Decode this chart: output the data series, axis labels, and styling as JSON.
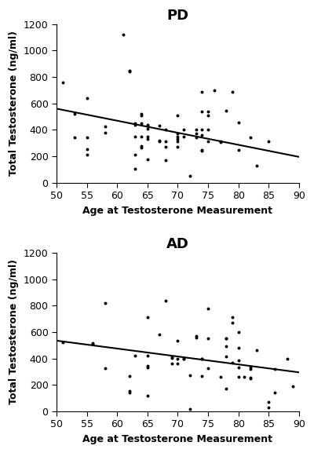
{
  "pd_title": "PD",
  "ad_title": "AD",
  "xlabel": "Age at Testosterone Measurement",
  "ylabel": "Total Testosterone (ng/ml)",
  "xlim": [
    50,
    90
  ],
  "ylim": [
    0,
    1200
  ],
  "xticks": [
    50,
    55,
    60,
    65,
    70,
    75,
    80,
    85,
    90
  ],
  "yticks": [
    0,
    200,
    400,
    600,
    800,
    1000,
    1200
  ],
  "pd_points": [
    [
      51,
      760
    ],
    [
      53,
      340
    ],
    [
      53,
      520
    ],
    [
      55,
      640
    ],
    [
      55,
      340
    ],
    [
      55,
      255
    ],
    [
      55,
      210
    ],
    [
      58,
      380
    ],
    [
      58,
      425
    ],
    [
      61,
      1120
    ],
    [
      62,
      850
    ],
    [
      62,
      840
    ],
    [
      63,
      450
    ],
    [
      63,
      440
    ],
    [
      63,
      350
    ],
    [
      63,
      210
    ],
    [
      63,
      105
    ],
    [
      64,
      520
    ],
    [
      64,
      510
    ],
    [
      64,
      450
    ],
    [
      64,
      350
    ],
    [
      64,
      280
    ],
    [
      64,
      265
    ],
    [
      65,
      440
    ],
    [
      65,
      430
    ],
    [
      65,
      410
    ],
    [
      65,
      350
    ],
    [
      65,
      330
    ],
    [
      65,
      175
    ],
    [
      67,
      430
    ],
    [
      67,
      320
    ],
    [
      67,
      310
    ],
    [
      68,
      400
    ],
    [
      68,
      310
    ],
    [
      68,
      270
    ],
    [
      68,
      170
    ],
    [
      70,
      510
    ],
    [
      70,
      370
    ],
    [
      70,
      350
    ],
    [
      70,
      330
    ],
    [
      70,
      310
    ],
    [
      70,
      270
    ],
    [
      71,
      400
    ],
    [
      71,
      350
    ],
    [
      72,
      50
    ],
    [
      73,
      400
    ],
    [
      73,
      370
    ],
    [
      73,
      340
    ],
    [
      74,
      690
    ],
    [
      74,
      540
    ],
    [
      74,
      400
    ],
    [
      74,
      360
    ],
    [
      74,
      250
    ],
    [
      74,
      240
    ],
    [
      75,
      540
    ],
    [
      75,
      510
    ],
    [
      75,
      400
    ],
    [
      75,
      310
    ],
    [
      76,
      700
    ],
    [
      77,
      310
    ],
    [
      77,
      305
    ],
    [
      78,
      545
    ],
    [
      79,
      690
    ],
    [
      80,
      455
    ],
    [
      80,
      250
    ],
    [
      82,
      340
    ],
    [
      83,
      130
    ],
    [
      85,
      310
    ]
  ],
  "pd_line": [
    [
      50,
      560
    ],
    [
      90,
      195
    ]
  ],
  "ad_points": [
    [
      51,
      525
    ],
    [
      56,
      515
    ],
    [
      56,
      510
    ],
    [
      58,
      820
    ],
    [
      58,
      325
    ],
    [
      62,
      265
    ],
    [
      62,
      155
    ],
    [
      62,
      145
    ],
    [
      63,
      420
    ],
    [
      65,
      710
    ],
    [
      65,
      420
    ],
    [
      65,
      345
    ],
    [
      65,
      330
    ],
    [
      65,
      120
    ],
    [
      67,
      580
    ],
    [
      68,
      840
    ],
    [
      69,
      410
    ],
    [
      69,
      405
    ],
    [
      69,
      360
    ],
    [
      70,
      535
    ],
    [
      70,
      400
    ],
    [
      70,
      360
    ],
    [
      71,
      400
    ],
    [
      71,
      395
    ],
    [
      72,
      270
    ],
    [
      72,
      15
    ],
    [
      73,
      570
    ],
    [
      73,
      560
    ],
    [
      74,
      400
    ],
    [
      74,
      395
    ],
    [
      74,
      265
    ],
    [
      75,
      775
    ],
    [
      75,
      550
    ],
    [
      75,
      325
    ],
    [
      77,
      260
    ],
    [
      78,
      555
    ],
    [
      78,
      550
    ],
    [
      78,
      490
    ],
    [
      78,
      415
    ],
    [
      78,
      170
    ],
    [
      79,
      715
    ],
    [
      79,
      670
    ],
    [
      79,
      365
    ],
    [
      80,
      600
    ],
    [
      80,
      480
    ],
    [
      80,
      385
    ],
    [
      80,
      330
    ],
    [
      80,
      260
    ],
    [
      81,
      260
    ],
    [
      82,
      335
    ],
    [
      82,
      320
    ],
    [
      82,
      255
    ],
    [
      82,
      250
    ],
    [
      83,
      465
    ],
    [
      85,
      70
    ],
    [
      85,
      30
    ],
    [
      86,
      320
    ],
    [
      86,
      140
    ],
    [
      88,
      395
    ],
    [
      89,
      190
    ]
  ],
  "ad_line": [
    [
      50,
      535
    ],
    [
      90,
      295
    ]
  ],
  "bg_color": "#ffffff",
  "dot_color": "#000000",
  "line_color": "#000000",
  "dot_size": 8,
  "title_fontsize": 13,
  "label_fontsize": 9,
  "tick_fontsize": 9
}
